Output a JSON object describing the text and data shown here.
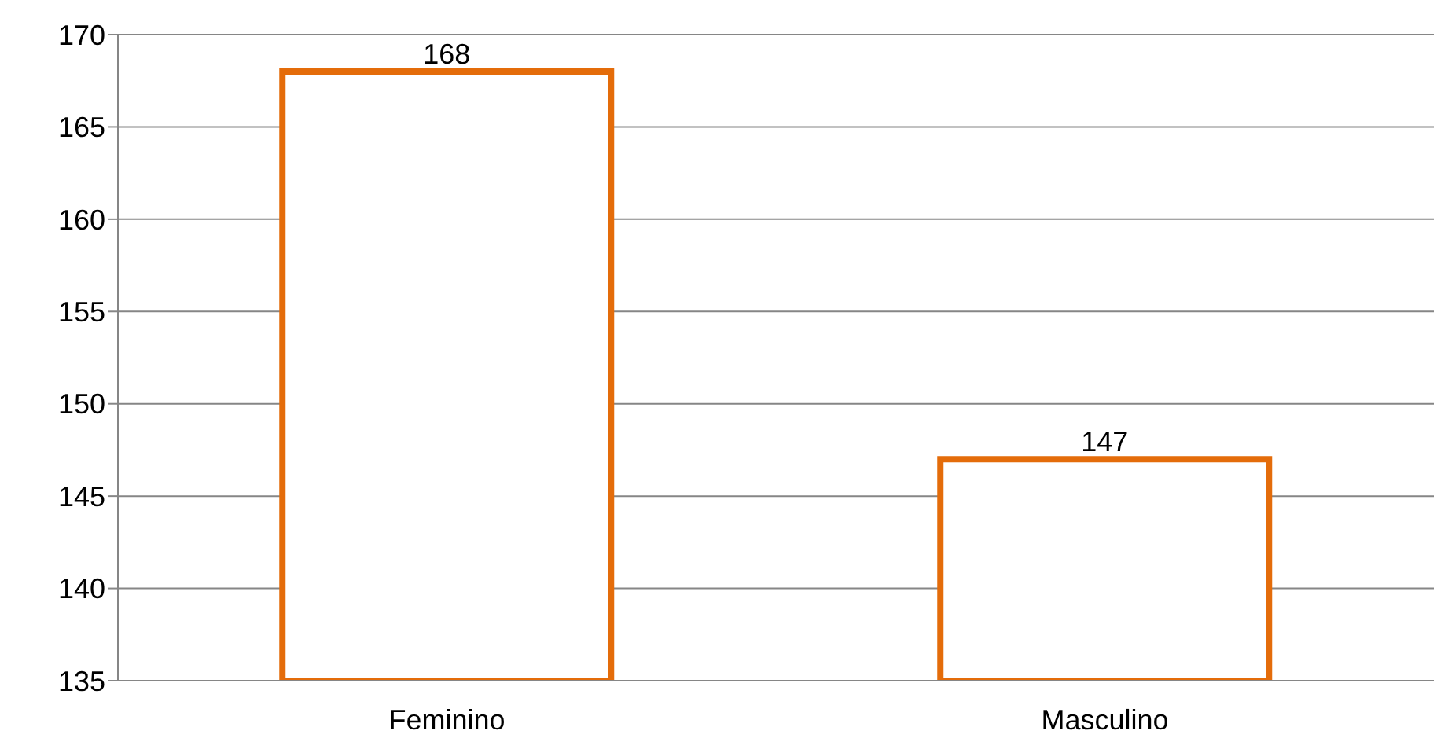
{
  "chart_data": {
    "type": "bar",
    "categories": [
      "Feminino",
      "Masculino"
    ],
    "values": [
      168,
      147
    ],
    "color": "#e46c0a",
    "ylim": [
      135,
      170
    ],
    "yticks": [
      135,
      140,
      145,
      150,
      155,
      160,
      165,
      170
    ],
    "grid": "y",
    "data_labels": true
  }
}
